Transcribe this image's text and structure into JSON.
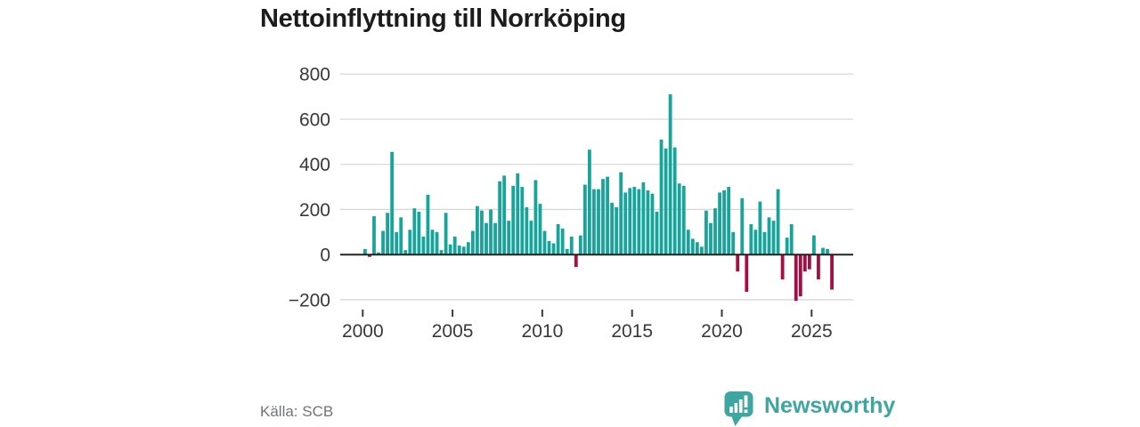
{
  "title": "Nettoinflyttning till Norrköping",
  "source": "Källa: SCB",
  "branding": {
    "wordmark": "Newsworthy",
    "icon": "bar-chart-speech-bubble"
  },
  "colors": {
    "positive": "#17a49b",
    "negative": "#a50d45",
    "grid": "#d8d8d8",
    "zero_axis": "#222222",
    "tick": "#3a3a3a",
    "label_text": "#383838",
    "muted_text": "#6f7378",
    "brand": "#3ea6a0",
    "title_text": "#1c1c1c",
    "background": "#ffffff"
  },
  "chart_data": {
    "type": "bar",
    "title": "Nettoinflyttning till Norrköping",
    "xlabel": "",
    "ylabel": "",
    "unit": "personer per kvartal (netto)",
    "frequency": "quarterly",
    "start_year": 2000,
    "periods_per_year": 4,
    "x_tick_labels": [
      "2000",
      "2005",
      "2010",
      "2015",
      "2020",
      "2025"
    ],
    "y_ticks": [
      800,
      600,
      400,
      200,
      0,
      -200
    ],
    "y_tick_labels": [
      "800",
      "600",
      "400",
      "200",
      "0",
      "−200"
    ],
    "ylim": [
      -240,
      840
    ],
    "grid": "horizontal",
    "legend": "none",
    "values": [
      25,
      -10,
      170,
      10,
      105,
      185,
      455,
      100,
      165,
      20,
      110,
      205,
      190,
      80,
      265,
      110,
      100,
      20,
      185,
      45,
      80,
      40,
      35,
      55,
      105,
      215,
      195,
      140,
      200,
      140,
      325,
      350,
      150,
      305,
      360,
      300,
      210,
      150,
      330,
      225,
      105,
      60,
      50,
      135,
      115,
      25,
      80,
      -55,
      85,
      310,
      465,
      290,
      290,
      335,
      345,
      230,
      210,
      365,
      275,
      295,
      300,
      290,
      320,
      285,
      270,
      190,
      510,
      470,
      710,
      475,
      315,
      305,
      110,
      70,
      55,
      35,
      195,
      140,
      205,
      275,
      285,
      300,
      100,
      -75,
      250,
      -165,
      135,
      110,
      235,
      100,
      165,
      150,
      290,
      -110,
      75,
      135,
      -205,
      -185,
      -75,
      -65,
      85,
      -110,
      30,
      25,
      -155
    ]
  }
}
